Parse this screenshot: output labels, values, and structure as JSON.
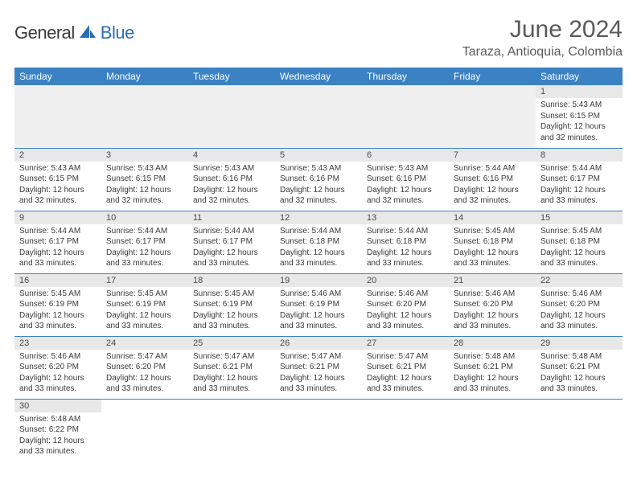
{
  "brand": {
    "general": "General",
    "blue": "Blue"
  },
  "title": "June 2024",
  "location": "Taraza, Antioquia, Colombia",
  "colors": {
    "header_bg": "#3b82c4",
    "header_text": "#ffffff",
    "daynum_bg": "#e8e8e8",
    "border": "#3b82c4",
    "logo_blue": "#2a6db5",
    "text_dark": "#3a3a3a"
  },
  "weekdays": [
    "Sunday",
    "Monday",
    "Tuesday",
    "Wednesday",
    "Thursday",
    "Friday",
    "Saturday"
  ],
  "weeks": [
    [
      null,
      null,
      null,
      null,
      null,
      null,
      {
        "n": "1",
        "sr": "5:43 AM",
        "ss": "6:15 PM",
        "dl": "12 hours and 32 minutes."
      }
    ],
    [
      {
        "n": "2",
        "sr": "5:43 AM",
        "ss": "6:15 PM",
        "dl": "12 hours and 32 minutes."
      },
      {
        "n": "3",
        "sr": "5:43 AM",
        "ss": "6:15 PM",
        "dl": "12 hours and 32 minutes."
      },
      {
        "n": "4",
        "sr": "5:43 AM",
        "ss": "6:16 PM",
        "dl": "12 hours and 32 minutes."
      },
      {
        "n": "5",
        "sr": "5:43 AM",
        "ss": "6:16 PM",
        "dl": "12 hours and 32 minutes."
      },
      {
        "n": "6",
        "sr": "5:43 AM",
        "ss": "6:16 PM",
        "dl": "12 hours and 32 minutes."
      },
      {
        "n": "7",
        "sr": "5:44 AM",
        "ss": "6:16 PM",
        "dl": "12 hours and 32 minutes."
      },
      {
        "n": "8",
        "sr": "5:44 AM",
        "ss": "6:17 PM",
        "dl": "12 hours and 33 minutes."
      }
    ],
    [
      {
        "n": "9",
        "sr": "5:44 AM",
        "ss": "6:17 PM",
        "dl": "12 hours and 33 minutes."
      },
      {
        "n": "10",
        "sr": "5:44 AM",
        "ss": "6:17 PM",
        "dl": "12 hours and 33 minutes."
      },
      {
        "n": "11",
        "sr": "5:44 AM",
        "ss": "6:17 PM",
        "dl": "12 hours and 33 minutes."
      },
      {
        "n": "12",
        "sr": "5:44 AM",
        "ss": "6:18 PM",
        "dl": "12 hours and 33 minutes."
      },
      {
        "n": "13",
        "sr": "5:44 AM",
        "ss": "6:18 PM",
        "dl": "12 hours and 33 minutes."
      },
      {
        "n": "14",
        "sr": "5:45 AM",
        "ss": "6:18 PM",
        "dl": "12 hours and 33 minutes."
      },
      {
        "n": "15",
        "sr": "5:45 AM",
        "ss": "6:18 PM",
        "dl": "12 hours and 33 minutes."
      }
    ],
    [
      {
        "n": "16",
        "sr": "5:45 AM",
        "ss": "6:19 PM",
        "dl": "12 hours and 33 minutes."
      },
      {
        "n": "17",
        "sr": "5:45 AM",
        "ss": "6:19 PM",
        "dl": "12 hours and 33 minutes."
      },
      {
        "n": "18",
        "sr": "5:45 AM",
        "ss": "6:19 PM",
        "dl": "12 hours and 33 minutes."
      },
      {
        "n": "19",
        "sr": "5:46 AM",
        "ss": "6:19 PM",
        "dl": "12 hours and 33 minutes."
      },
      {
        "n": "20",
        "sr": "5:46 AM",
        "ss": "6:20 PM",
        "dl": "12 hours and 33 minutes."
      },
      {
        "n": "21",
        "sr": "5:46 AM",
        "ss": "6:20 PM",
        "dl": "12 hours and 33 minutes."
      },
      {
        "n": "22",
        "sr": "5:46 AM",
        "ss": "6:20 PM",
        "dl": "12 hours and 33 minutes."
      }
    ],
    [
      {
        "n": "23",
        "sr": "5:46 AM",
        "ss": "6:20 PM",
        "dl": "12 hours and 33 minutes."
      },
      {
        "n": "24",
        "sr": "5:47 AM",
        "ss": "6:20 PM",
        "dl": "12 hours and 33 minutes."
      },
      {
        "n": "25",
        "sr": "5:47 AM",
        "ss": "6:21 PM",
        "dl": "12 hours and 33 minutes."
      },
      {
        "n": "26",
        "sr": "5:47 AM",
        "ss": "6:21 PM",
        "dl": "12 hours and 33 minutes."
      },
      {
        "n": "27",
        "sr": "5:47 AM",
        "ss": "6:21 PM",
        "dl": "12 hours and 33 minutes."
      },
      {
        "n": "28",
        "sr": "5:48 AM",
        "ss": "6:21 PM",
        "dl": "12 hours and 33 minutes."
      },
      {
        "n": "29",
        "sr": "5:48 AM",
        "ss": "6:21 PM",
        "dl": "12 hours and 33 minutes."
      }
    ],
    [
      {
        "n": "30",
        "sr": "5:48 AM",
        "ss": "6:22 PM",
        "dl": "12 hours and 33 minutes."
      },
      null,
      null,
      null,
      null,
      null,
      null
    ]
  ],
  "labels": {
    "sunrise": "Sunrise:",
    "sunset": "Sunset:",
    "daylight": "Daylight:"
  }
}
